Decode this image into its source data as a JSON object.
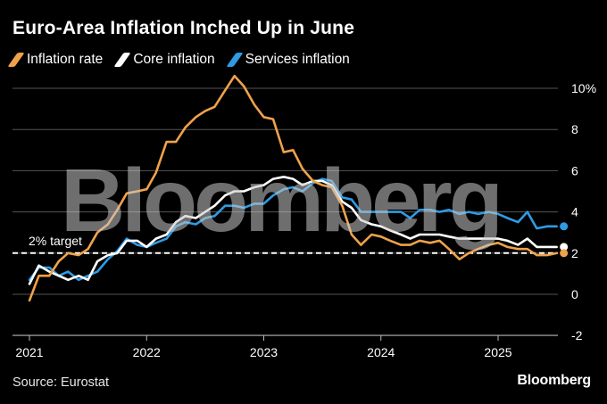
{
  "title": "Euro-Area Inflation Inched Up in June",
  "legend": [
    {
      "label": "Inflation rate",
      "color": "#f0a24a"
    },
    {
      "label": "Core inflation",
      "color": "#ffffff"
    },
    {
      "label": "Services inflation",
      "color": "#2f9be3"
    }
  ],
  "source": "Source: Eurostat",
  "brand": "Bloomberg",
  "watermark": "Bloomberg",
  "reference_label": "2% target",
  "chart_data": {
    "type": "line",
    "title": "Euro-Area Inflation Inched Up in June",
    "xlabel": "",
    "ylabel": "",
    "ylim": [
      -2,
      10
    ],
    "yticks": [
      -2,
      0,
      2,
      4,
      6,
      8,
      10
    ],
    "ytick_labels": [
      "-2",
      "0",
      "2",
      "4",
      "6",
      "8",
      "10%"
    ],
    "xticks": [
      2021,
      2022,
      2023,
      2024,
      2025
    ],
    "xtick_labels": [
      "2021",
      "2022",
      "2023",
      "2024",
      "2025"
    ],
    "xlim": [
      2021.0,
      2025.58
    ],
    "grid": true,
    "reference_line": {
      "value": 2,
      "label": "2% target"
    },
    "series": [
      {
        "name": "Inflation rate",
        "color": "#f0a24a",
        "x": [
          2021.0,
          2021.08,
          2021.17,
          2021.25,
          2021.33,
          2021.42,
          2021.5,
          2021.58,
          2021.67,
          2021.75,
          2021.83,
          2021.92,
          2022.0,
          2022.08,
          2022.17,
          2022.25,
          2022.33,
          2022.42,
          2022.5,
          2022.58,
          2022.67,
          2022.75,
          2022.83,
          2022.92,
          2023.0,
          2023.08,
          2023.17,
          2023.25,
          2023.33,
          2023.42,
          2023.5,
          2023.58,
          2023.67,
          2023.75,
          2023.83,
          2023.92,
          2024.0,
          2024.08,
          2024.17,
          2024.25,
          2024.33,
          2024.42,
          2024.5,
          2024.58,
          2024.67,
          2024.75,
          2024.83,
          2024.92,
          2025.0,
          2025.08,
          2025.17,
          2025.25,
          2025.33,
          2025.42,
          2025.5
        ],
        "values": [
          -0.3,
          0.9,
          0.9,
          1.6,
          2.0,
          1.9,
          2.2,
          3.0,
          3.4,
          4.1,
          4.9,
          5.0,
          5.1,
          5.9,
          7.4,
          7.4,
          8.1,
          8.6,
          8.9,
          9.1,
          9.9,
          10.6,
          10.1,
          9.2,
          8.6,
          8.5,
          6.9,
          7.0,
          6.1,
          5.5,
          5.3,
          5.2,
          4.3,
          2.9,
          2.4,
          2.9,
          2.8,
          2.6,
          2.4,
          2.4,
          2.6,
          2.5,
          2.6,
          2.2,
          1.7,
          2.0,
          2.2,
          2.4,
          2.5,
          2.3,
          2.2,
          2.2,
          1.9,
          1.9,
          2.0
        ]
      },
      {
        "name": "Core inflation",
        "color": "#ffffff",
        "x": [
          2021.0,
          2021.08,
          2021.17,
          2021.25,
          2021.33,
          2021.42,
          2021.5,
          2021.58,
          2021.67,
          2021.75,
          2021.83,
          2021.92,
          2022.0,
          2022.08,
          2022.17,
          2022.25,
          2022.33,
          2022.42,
          2022.5,
          2022.58,
          2022.67,
          2022.75,
          2022.83,
          2022.92,
          2023.0,
          2023.08,
          2023.17,
          2023.25,
          2023.33,
          2023.42,
          2023.5,
          2023.58,
          2023.67,
          2023.75,
          2023.83,
          2023.92,
          2024.0,
          2024.08,
          2024.17,
          2024.25,
          2024.33,
          2024.42,
          2024.5,
          2024.58,
          2024.67,
          2024.75,
          2024.83,
          2024.92,
          2025.0,
          2025.08,
          2025.17,
          2025.25,
          2025.33,
          2025.42,
          2025.5
        ],
        "values": [
          0.5,
          1.4,
          1.1,
          0.9,
          0.7,
          0.9,
          0.7,
          1.6,
          1.9,
          2.0,
          2.6,
          2.6,
          2.3,
          2.7,
          2.9,
          3.5,
          3.8,
          3.7,
          4.0,
          4.3,
          4.8,
          5.0,
          5.0,
          5.2,
          5.3,
          5.6,
          5.7,
          5.6,
          5.3,
          5.5,
          5.5,
          5.3,
          4.5,
          4.2,
          3.6,
          3.4,
          3.3,
          3.1,
          2.9,
          2.7,
          2.9,
          2.9,
          2.9,
          2.8,
          2.7,
          2.7,
          2.7,
          2.7,
          2.7,
          2.6,
          2.4,
          2.7,
          2.3,
          2.3,
          2.3
        ]
      },
      {
        "name": "Services inflation",
        "color": "#2f9be3",
        "x": [
          2021.0,
          2021.08,
          2021.17,
          2021.25,
          2021.33,
          2021.42,
          2021.5,
          2021.58,
          2021.67,
          2021.75,
          2021.83,
          2021.92,
          2022.0,
          2022.08,
          2022.17,
          2022.25,
          2022.33,
          2022.42,
          2022.5,
          2022.58,
          2022.67,
          2022.75,
          2022.83,
          2022.92,
          2023.0,
          2023.08,
          2023.17,
          2023.25,
          2023.33,
          2023.42,
          2023.5,
          2023.58,
          2023.67,
          2023.75,
          2023.83,
          2023.92,
          2024.0,
          2024.08,
          2024.17,
          2024.25,
          2024.33,
          2024.42,
          2024.5,
          2024.58,
          2024.67,
          2024.75,
          2024.83,
          2024.92,
          2025.0,
          2025.08,
          2025.17,
          2025.25,
          2025.33,
          2025.42,
          2025.5
        ],
        "values": [
          0.7,
          1.3,
          1.3,
          0.9,
          1.1,
          0.7,
          0.9,
          1.1,
          1.7,
          2.1,
          2.7,
          2.4,
          2.3,
          2.5,
          2.7,
          3.3,
          3.5,
          3.4,
          3.7,
          3.8,
          4.3,
          4.3,
          4.2,
          4.4,
          4.4,
          4.8,
          5.1,
          5.2,
          5.0,
          5.4,
          5.6,
          5.5,
          4.7,
          4.6,
          4.0,
          4.0,
          4.0,
          4.0,
          4.0,
          3.7,
          4.1,
          4.1,
          4.0,
          4.1,
          3.9,
          4.0,
          3.9,
          4.0,
          3.9,
          3.7,
          3.5,
          4.0,
          3.2,
          3.3,
          3.3
        ]
      }
    ]
  }
}
